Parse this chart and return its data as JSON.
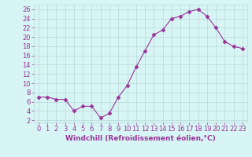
{
  "x": [
    0,
    1,
    2,
    3,
    4,
    5,
    6,
    7,
    8,
    9,
    10,
    11,
    12,
    13,
    14,
    15,
    16,
    17,
    18,
    19,
    20,
    21,
    22,
    23
  ],
  "y": [
    7,
    7,
    6.5,
    6.5,
    4,
    5,
    5,
    2.5,
    3.5,
    7,
    9.5,
    13.5,
    17,
    20.5,
    21.5,
    24,
    24.5,
    25.5,
    26,
    24.5,
    22,
    19,
    18,
    17.5
  ],
  "line_color": "#993399",
  "marker": "D",
  "marker_size": 2.5,
  "bg_color": "#d8f5f5",
  "grid_color": "#b8d8d8",
  "xlabel": "Windchill (Refroidissement éolien,°C)",
  "xlim": [
    -0.5,
    23.5
  ],
  "ylim": [
    1.5,
    27
  ],
  "yticks": [
    2,
    4,
    6,
    8,
    10,
    12,
    14,
    16,
    18,
    20,
    22,
    24,
    26
  ],
  "xticks": [
    0,
    1,
    2,
    3,
    4,
    5,
    6,
    7,
    8,
    9,
    10,
    11,
    12,
    13,
    14,
    15,
    16,
    17,
    18,
    19,
    20,
    21,
    22,
    23
  ],
  "tick_color": "#993399",
  "label_color": "#993399",
  "label_fontsize": 6.5,
  "tick_fontsize": 6
}
